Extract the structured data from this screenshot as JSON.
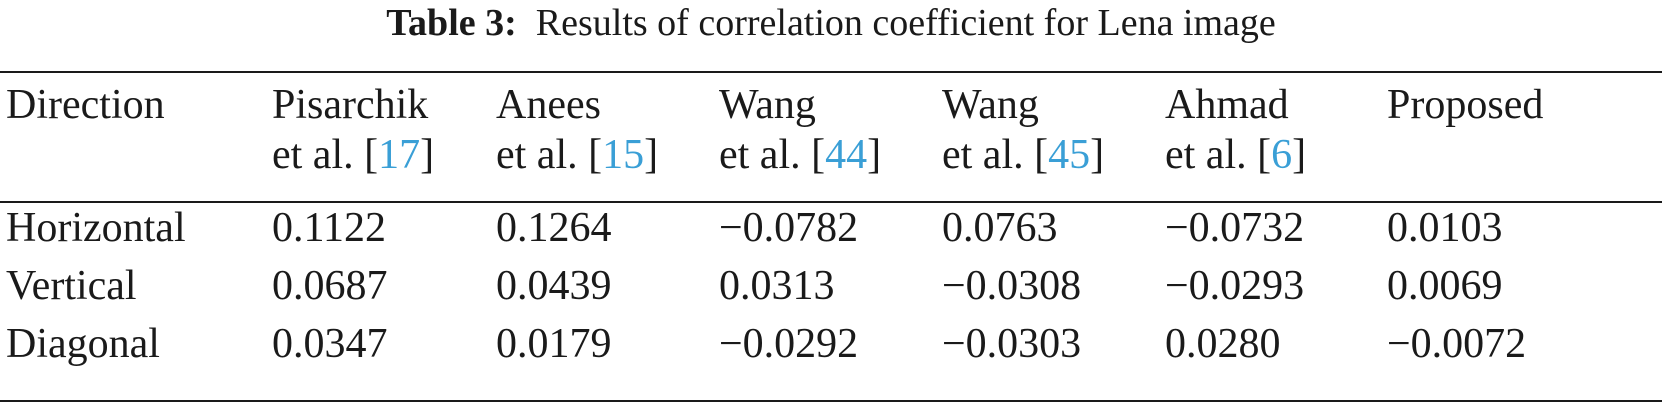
{
  "caption": {
    "label": "Table 3:",
    "text": "Results of correlation coefficient for Lena image"
  },
  "colors": {
    "text": "#1a1a1a",
    "reference_link": "#3a9fd6"
  },
  "table": {
    "headers": [
      {
        "line1": "Direction",
        "line2_prefix": "",
        "ref": "",
        "line2_suffix": ""
      },
      {
        "line1": "Pisarchik",
        "line2_prefix": "et al. [",
        "ref": "17",
        "line2_suffix": "]"
      },
      {
        "line1": "Anees",
        "line2_prefix": "et al. [",
        "ref": "15",
        "line2_suffix": "]"
      },
      {
        "line1": "Wang",
        "line2_prefix": "et al. [",
        "ref": "44",
        "line2_suffix": "]"
      },
      {
        "line1": "Wang",
        "line2_prefix": "et al. [",
        "ref": "45",
        "line2_suffix": "]"
      },
      {
        "line1": "Ahmad",
        "line2_prefix": "et al. [",
        "ref": "6",
        "line2_suffix": "]"
      },
      {
        "line1": "Proposed",
        "line2_prefix": "",
        "ref": "",
        "line2_suffix": ""
      }
    ],
    "rows": [
      [
        "Horizontal",
        "0.1122",
        "0.1264",
        "−0.0782",
        "0.0763",
        "−0.0732",
        "0.0103"
      ],
      [
        "Vertical",
        "0.0687",
        "0.0439",
        "0.0313",
        "−0.0308",
        "−0.0293",
        "0.0069"
      ],
      [
        "Diagonal",
        "0.0347",
        "0.0179",
        "−0.0292",
        "−0.0303",
        "0.0280",
        "−0.0072"
      ]
    ]
  }
}
